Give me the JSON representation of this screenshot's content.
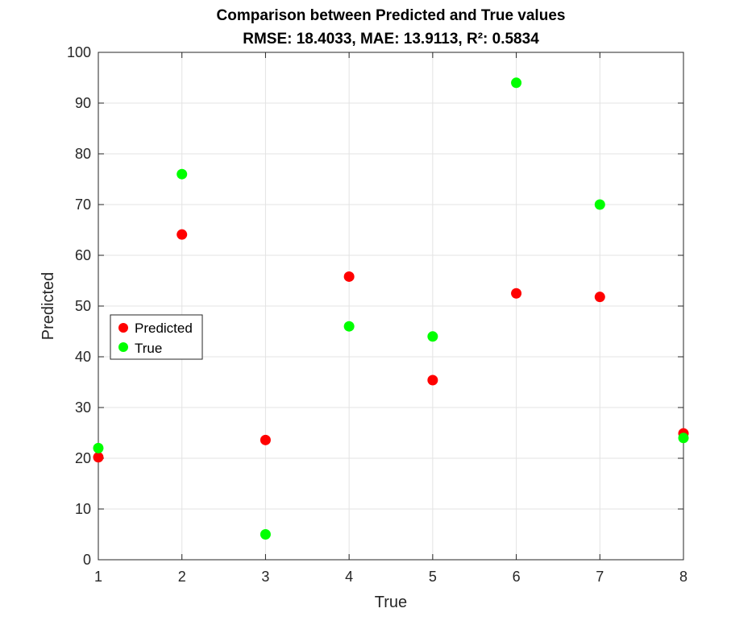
{
  "chart_data": {
    "type": "scatter",
    "title": "Comparison between Predicted and True values",
    "subtitle": "RMSE: 18.4033, MAE: 13.9113, R²: 0.5834",
    "xlabel": "True",
    "ylabel": "Predicted",
    "xlim": [
      1,
      8
    ],
    "ylim": [
      0,
      100
    ],
    "x_ticks": [
      "1",
      "2",
      "3",
      "4",
      "5",
      "6",
      "7",
      "8"
    ],
    "y_ticks": [
      "0",
      "10",
      "20",
      "30",
      "40",
      "50",
      "60",
      "70",
      "80",
      "90",
      "100"
    ],
    "grid": true,
    "legend_position": "left-middle",
    "series": [
      {
        "name": "Predicted",
        "color": "#ff0000",
        "x": [
          1,
          2,
          3,
          4,
          5,
          6,
          7,
          8
        ],
        "y": [
          20.2,
          64.1,
          23.6,
          55.8,
          35.4,
          52.5,
          51.8,
          24.9
        ]
      },
      {
        "name": "True",
        "color": "#00ff00",
        "x": [
          1,
          2,
          3,
          4,
          5,
          6,
          7,
          8
        ],
        "y": [
          22,
          76,
          5,
          46,
          44,
          94,
          70,
          24
        ]
      }
    ]
  }
}
